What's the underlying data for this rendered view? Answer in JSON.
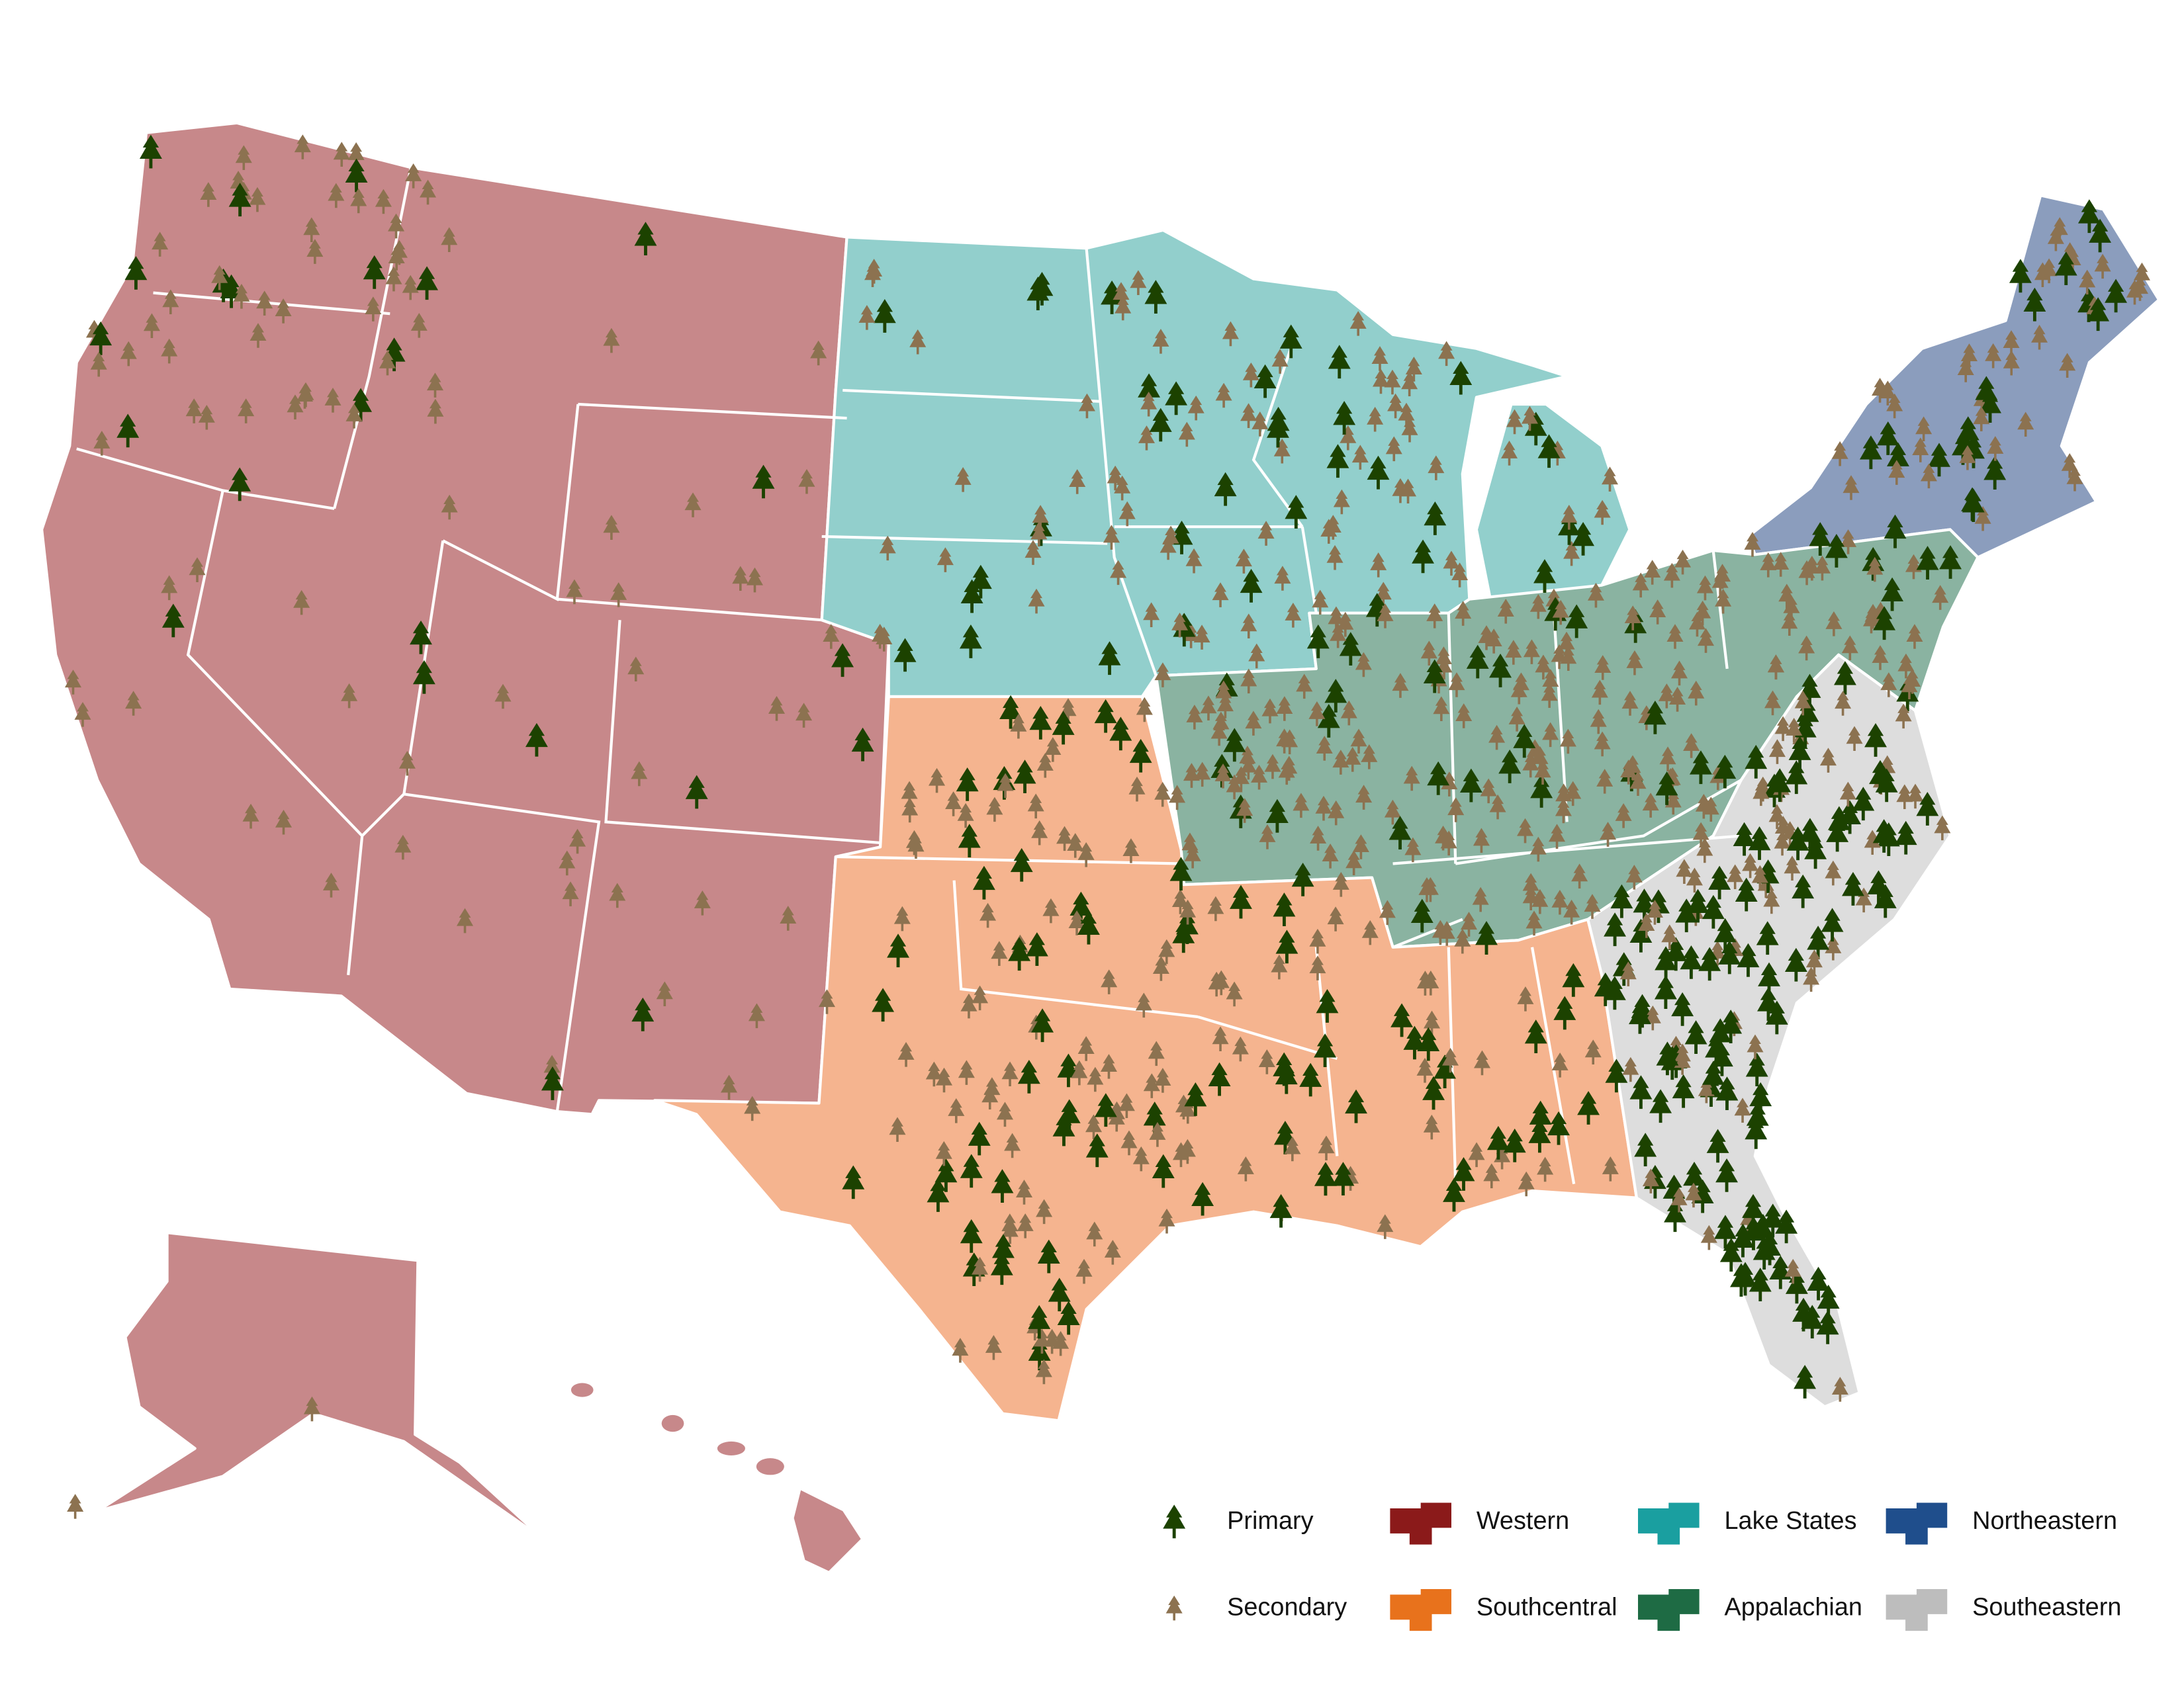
{
  "legend": {
    "sites": [
      {
        "label": "Primary"
      },
      {
        "label": "Secondary"
      }
    ],
    "regions": [
      {
        "label": "Western"
      },
      {
        "label": "Southcentral"
      },
      {
        "label": "Lake States"
      },
      {
        "label": "Appalachian"
      },
      {
        "label": "Northeastern"
      },
      {
        "label": "Southeastern"
      }
    ]
  }
}
